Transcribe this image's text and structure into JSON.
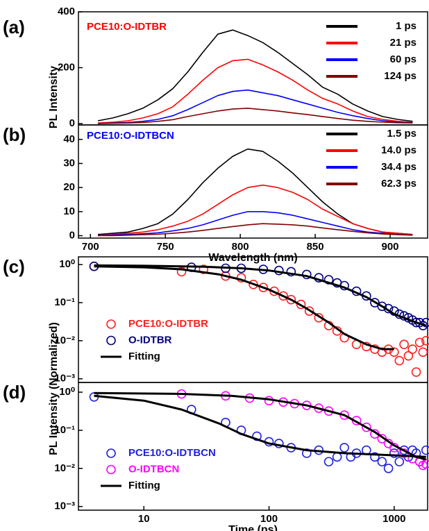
{
  "chart_data": [
    {
      "type": "line",
      "panel": "(a)",
      "label": "PCE10:O-IDTBR",
      "label_color": "#ff0000",
      "ylabel": "PL Intensity",
      "x": [
        705,
        715,
        725,
        735,
        745,
        755,
        765,
        775,
        785,
        795,
        805,
        815,
        825,
        835,
        845,
        855,
        865,
        875,
        885,
        895,
        905,
        915
      ],
      "xlim": [
        692,
        925
      ],
      "ylim": [
        -5,
        400
      ],
      "yticks": [
        0,
        200,
        400
      ],
      "series": [
        {
          "name": "1 ps",
          "color": "#000000",
          "values": [
            10,
            20,
            35,
            55,
            85,
            125,
            185,
            255,
            320,
            335,
            315,
            290,
            255,
            215,
            175,
            130,
            105,
            70,
            45,
            25,
            15,
            8
          ]
        },
        {
          "name": "21 ps",
          "color": "#ff0000",
          "values": [
            2,
            5,
            10,
            20,
            35,
            60,
            105,
            155,
            200,
            225,
            230,
            210,
            185,
            155,
            120,
            90,
            70,
            45,
            25,
            15,
            8,
            4
          ]
        },
        {
          "name": "60 ps",
          "color": "#0000ff",
          "values": [
            0,
            2,
            4,
            8,
            15,
            28,
            50,
            75,
            100,
            115,
            120,
            110,
            100,
            85,
            70,
            55,
            40,
            28,
            18,
            10,
            5,
            3
          ]
        },
        {
          "name": "124 ps",
          "color": "#800000",
          "values": [
            0,
            1,
            2,
            4,
            8,
            14,
            25,
            35,
            45,
            52,
            55,
            50,
            45,
            38,
            32,
            25,
            18,
            12,
            8,
            5,
            3,
            2
          ]
        }
      ]
    },
    {
      "type": "line",
      "panel": "(b)",
      "label": "PCE10:O-IDTBCN",
      "label_color": "#0000ff",
      "xlabel": "Wavelength (nm)",
      "x": [
        705,
        715,
        725,
        735,
        745,
        755,
        765,
        775,
        785,
        795,
        805,
        815,
        825,
        835,
        845,
        855,
        865,
        875,
        885,
        895,
        905,
        915
      ],
      "xlim": [
        692,
        925
      ],
      "xticks": [
        700,
        750,
        800,
        850,
        900
      ],
      "ylim": [
        -1,
        46
      ],
      "yticks": [
        0,
        10,
        20,
        30,
        40
      ],
      "series": [
        {
          "name": "1.5 ps",
          "color": "#000000",
          "values": [
            0.5,
            1,
            1.5,
            3,
            5,
            9,
            15,
            22,
            28,
            33,
            36,
            35,
            31,
            26,
            20,
            14,
            9,
            5,
            3,
            1.5,
            1,
            0.5
          ]
        },
        {
          "name": "14.0 ps",
          "color": "#ff0000",
          "values": [
            0,
            0.5,
            1,
            1.5,
            2.5,
            4,
            6,
            9,
            13,
            17,
            20,
            21,
            20,
            18,
            15,
            11,
            8,
            5,
            3,
            1.5,
            1,
            0.5
          ]
        },
        {
          "name": "34.4 ps",
          "color": "#0000ff",
          "values": [
            0,
            0.3,
            0.5,
            0.8,
            1.2,
            2,
            3,
            4.5,
            6.5,
            8.5,
            10,
            10,
            9.5,
            8.5,
            7,
            5.5,
            4,
            2.5,
            1.5,
            1,
            0.5,
            0.3
          ]
        },
        {
          "name": "62.3 ps",
          "color": "#800000",
          "values": [
            0,
            0,
            0.2,
            0.4,
            0.6,
            1,
            1.5,
            2.2,
            3,
            3.8,
            4.5,
            5,
            4.8,
            4.5,
            4,
            3.2,
            2.5,
            1.8,
            1.2,
            0.7,
            0.4,
            0.2
          ]
        }
      ]
    },
    {
      "type": "scatter",
      "panel": "(c)",
      "ylabel": "PL Intensity (Normalized)",
      "xscale": "log",
      "yscale": "log",
      "xlim": [
        3,
        1850
      ],
      "ylim": [
        0.0008,
        1.6
      ],
      "yticks": [
        {
          "value": 1,
          "label": "10⁰"
        },
        {
          "value": 0.1,
          "label": "10⁻¹"
        },
        {
          "value": 0.01,
          "label": "10⁻²"
        },
        {
          "value": 0.001,
          "label": "10⁻³"
        }
      ],
      "series": [
        {
          "name": "PCE10:O-IDTBR",
          "color": "#ff2020",
          "mode": "markers",
          "x": [
            4,
            20,
            30,
            45,
            60,
            75,
            90,
            110,
            130,
            150,
            180,
            210,
            250,
            300,
            350,
            400,
            500,
            600,
            700,
            800,
            900,
            1000,
            1100,
            1200,
            1300,
            1400,
            1500,
            1600,
            1700,
            1800
          ],
          "values": [
            0.9,
            0.65,
            0.75,
            0.5,
            0.45,
            0.3,
            0.25,
            0.2,
            0.15,
            0.12,
            0.09,
            0.06,
            0.04,
            0.025,
            0.018,
            0.012,
            0.008,
            0.007,
            0.006,
            0.005,
            0.006,
            0.005,
            0.003,
            0.008,
            0.004,
            0.006,
            0.0015,
            0.009,
            0.005,
            0.01
          ]
        },
        {
          "name": "O-IDTBR",
          "color": "#000080",
          "mode": "markers",
          "x": [
            4,
            24,
            45,
            60,
            90,
            120,
            150,
            200,
            250,
            300,
            350,
            400,
            500,
            600,
            700,
            800,
            900,
            1000,
            1100,
            1200,
            1300,
            1400,
            1500,
            1600,
            1700,
            1800
          ],
          "values": [
            0.9,
            0.85,
            0.8,
            0.8,
            0.75,
            0.7,
            0.65,
            0.55,
            0.45,
            0.4,
            0.33,
            0.28,
            0.2,
            0.15,
            0.1,
            0.08,
            0.07,
            0.06,
            0.05,
            0.045,
            0.04,
            0.035,
            0.03,
            0.03,
            0.025,
            0.03
          ]
        },
        {
          "name": "Fitting",
          "color": "#000000",
          "mode": "line",
          "x": [
            4,
            10,
            20,
            40,
            60,
            100,
            150,
            200,
            300,
            400,
            600,
            800,
            1000,
            null,
            4,
            10,
            30,
            60,
            100,
            200,
            400,
            600,
            800,
            1000,
            1500,
            1800
          ],
          "values": [
            0.9,
            0.85,
            0.75,
            0.55,
            0.4,
            0.22,
            0.12,
            0.07,
            0.03,
            0.015,
            0.008,
            0.006,
            0.006,
            null,
            0.95,
            0.93,
            0.88,
            0.8,
            0.7,
            0.5,
            0.25,
            0.14,
            0.08,
            0.05,
            0.03,
            0.025
          ]
        }
      ]
    },
    {
      "type": "scatter",
      "panel": "(d)",
      "xlabel": "Time (ps)",
      "xscale": "log",
      "yscale": "log",
      "xlim": [
        3,
        1850
      ],
      "xticks": [
        10,
        100,
        1000
      ],
      "ylim": [
        0.0008,
        1.8
      ],
      "yticks": [
        {
          "value": 1,
          "label": "10⁰"
        },
        {
          "value": 0.1,
          "label": "10⁻¹"
        },
        {
          "value": 0.01,
          "label": "10⁻²"
        },
        {
          "value": 0.001,
          "label": "10⁻³"
        }
      ],
      "series": [
        {
          "name": "PCE10:O-IDTBCN",
          "color": "#2020e0",
          "mode": "markers",
          "x": [
            4,
            24,
            45,
            60,
            80,
            100,
            120,
            150,
            200,
            250,
            300,
            350,
            400,
            450,
            500,
            600,
            700,
            800,
            900,
            1000,
            1100,
            1200,
            1300,
            1400,
            1500,
            1600,
            1800
          ],
          "values": [
            0.75,
            0.35,
            0.16,
            0.1,
            0.07,
            0.05,
            0.045,
            0.035,
            0.025,
            0.03,
            0.015,
            0.02,
            0.035,
            0.02,
            0.025,
            0.03,
            0.02,
            0.015,
            0.01,
            0.025,
            0.015,
            0.03,
            0.02,
            0.03,
            0.025,
            0.015,
            0.03
          ]
        },
        {
          "name": "O-IDTBCN",
          "color": "#ff00ff",
          "mode": "markers",
          "x": [
            20,
            45,
            70,
            100,
            130,
            160,
            200,
            250,
            300,
            400,
            500,
            600,
            700,
            800,
            900,
            1000,
            1200,
            1400,
            1600,
            1700,
            1800
          ],
          "values": [
            0.9,
            0.8,
            0.7,
            0.6,
            0.55,
            0.5,
            0.45,
            0.38,
            0.32,
            0.25,
            0.18,
            0.12,
            0.08,
            0.06,
            0.045,
            0.035,
            0.025,
            0.018,
            0.015,
            0.012,
            0.013
          ]
        },
        {
          "name": "Fitting",
          "color": "#000000",
          "mode": "line",
          "x": [
            4,
            10,
            20,
            40,
            60,
            100,
            200,
            400,
            1000,
            1800,
            null,
            4,
            20,
            50,
            100,
            200,
            400,
            700,
            1000,
            1500,
            1800
          ],
          "values": [
            0.8,
            0.6,
            0.35,
            0.15,
            0.08,
            0.045,
            0.03,
            0.025,
            0.022,
            0.02,
            null,
            0.95,
            0.9,
            0.8,
            0.65,
            0.45,
            0.25,
            0.09,
            0.04,
            0.02,
            0.017
          ]
        }
      ]
    }
  ]
}
